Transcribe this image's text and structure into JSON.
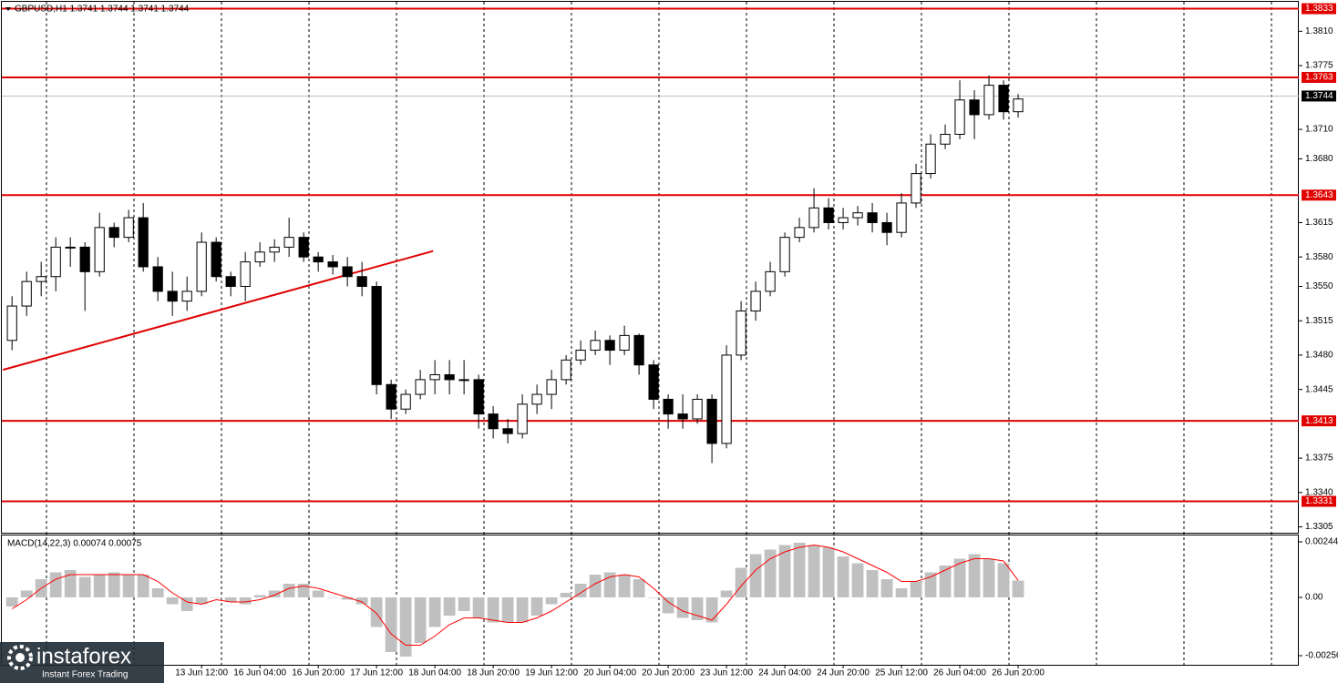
{
  "chart_data": [
    {
      "type": "candlestick",
      "title": "GBPUSD,H1  1.3741 1.3744 1.3741 1.3744",
      "open": [
        1.3495,
        1.353,
        1.3555,
        1.356,
        1.359,
        1.359,
        1.3565,
        1.361,
        1.36,
        1.362,
        1.357,
        1.3545,
        1.3535,
        1.3545,
        1.3595,
        1.356,
        1.355,
        1.3575,
        1.3585,
        1.359,
        1.36,
        1.358,
        1.3575,
        1.357,
        1.356,
        1.355,
        1.345,
        1.3425,
        1.344,
        1.3455,
        1.346,
        1.3455,
        1.3455,
        1.342,
        1.3405,
        1.34,
        1.343,
        1.344,
        1.3455,
        1.3475,
        1.3485,
        1.3495,
        1.3485,
        1.35,
        1.347,
        1.3435,
        1.342,
        1.3415,
        1.3435,
        1.339,
        1.348,
        1.3525,
        1.3545,
        1.3565,
        1.36,
        1.361,
        1.363,
        1.3615,
        1.362,
        1.3625,
        1.3615,
        1.3605,
        1.3635,
        1.3665,
        1.3695,
        1.3705,
        1.374,
        1.3725,
        1.3755,
        1.3728
      ],
      "high": [
        1.354,
        1.3565,
        1.3575,
        1.36,
        1.36,
        1.3595,
        1.3625,
        1.3615,
        1.3628,
        1.3635,
        1.358,
        1.3565,
        1.356,
        1.3605,
        1.36,
        1.3565,
        1.3585,
        1.3595,
        1.3598,
        1.362,
        1.3605,
        1.3585,
        1.3582,
        1.358,
        1.3575,
        1.3555,
        1.3455,
        1.3445,
        1.3465,
        1.3475,
        1.3475,
        1.3475,
        1.346,
        1.3428,
        1.3415,
        1.344,
        1.345,
        1.3465,
        1.348,
        1.3495,
        1.3505,
        1.35,
        1.351,
        1.3502,
        1.3475,
        1.344,
        1.344,
        1.344,
        1.344,
        1.349,
        1.3535,
        1.3555,
        1.3575,
        1.3605,
        1.362,
        1.365,
        1.364,
        1.363,
        1.3632,
        1.3635,
        1.3625,
        1.3645,
        1.3675,
        1.3705,
        1.3715,
        1.376,
        1.375,
        1.3765,
        1.376,
        1.3746
      ],
      "low": [
        1.3485,
        1.352,
        1.354,
        1.3545,
        1.357,
        1.3525,
        1.356,
        1.359,
        1.3595,
        1.3565,
        1.3535,
        1.352,
        1.3525,
        1.354,
        1.3555,
        1.354,
        1.3535,
        1.357,
        1.3575,
        1.358,
        1.3575,
        1.3565,
        1.3562,
        1.355,
        1.354,
        1.344,
        1.3415,
        1.342,
        1.3435,
        1.344,
        1.344,
        1.344,
        1.3405,
        1.3395,
        1.339,
        1.3395,
        1.342,
        1.3425,
        1.345,
        1.347,
        1.348,
        1.347,
        1.348,
        1.346,
        1.3425,
        1.3405,
        1.3405,
        1.341,
        1.337,
        1.3385,
        1.3475,
        1.3515,
        1.354,
        1.356,
        1.3595,
        1.3605,
        1.3608,
        1.3608,
        1.3612,
        1.3605,
        1.3592,
        1.36,
        1.363,
        1.366,
        1.369,
        1.37,
        1.37,
        1.372,
        1.372,
        1.3722
      ],
      "close": [
        1.353,
        1.3555,
        1.356,
        1.359,
        1.359,
        1.3565,
        1.361,
        1.36,
        1.362,
        1.357,
        1.3545,
        1.3535,
        1.3545,
        1.3595,
        1.356,
        1.355,
        1.3575,
        1.3585,
        1.359,
        1.36,
        1.358,
        1.3575,
        1.357,
        1.356,
        1.355,
        1.345,
        1.3425,
        1.344,
        1.3455,
        1.346,
        1.3455,
        1.3455,
        1.342,
        1.3405,
        1.34,
        1.343,
        1.344,
        1.3455,
        1.3475,
        1.3485,
        1.3495,
        1.3485,
        1.35,
        1.347,
        1.3435,
        1.342,
        1.3415,
        1.3435,
        1.339,
        1.348,
        1.3525,
        1.3545,
        1.3565,
        1.36,
        1.361,
        1.363,
        1.3615,
        1.362,
        1.3625,
        1.3615,
        1.3605,
        1.3635,
        1.3665,
        1.3695,
        1.3705,
        1.374,
        1.3725,
        1.3755,
        1.3728,
        1.3741
      ],
      "up_color": "#ffffff",
      "down_color": "#000000",
      "wick_color": "#000000",
      "xlim": [
        -0.7,
        88.25
      ],
      "xticks": [
        {
          "value": 13,
          "label": "13 Jun 12:00"
        },
        {
          "value": 17,
          "label": "16 Jun 04:00"
        },
        {
          "value": 21,
          "label": "16 Jun 20:00"
        },
        {
          "value": 25,
          "label": "17 Jun 12:00"
        },
        {
          "value": 29,
          "label": "18 Jun 04:00"
        },
        {
          "value": 33,
          "label": "18 Jun 20:00"
        },
        {
          "value": 37,
          "label": "19 Jun 12:00"
        },
        {
          "value": 41,
          "label": "20 Jun 04:00"
        },
        {
          "value": 45,
          "label": "20 Jun 20:00"
        },
        {
          "value": 49,
          "label": "23 Jun 12:00"
        },
        {
          "value": 53,
          "label": "24 Jun 04:00"
        },
        {
          "value": 57,
          "label": "24 Jun 20:00"
        },
        {
          "value": 61,
          "label": "25 Jun 12:00"
        },
        {
          "value": 65,
          "label": "26 Jun 04:00"
        },
        {
          "value": 69,
          "label": "26 Jun 20:00"
        }
      ],
      "ylim": [
        1.3299,
        1.384
      ],
      "yticks": [
        {
          "value": 1.381,
          "label": "1.3810"
        },
        {
          "value": 1.3775,
          "label": "1.3775"
        },
        {
          "value": 1.371,
          "label": "1.3710"
        },
        {
          "value": 1.368,
          "label": "1.3680"
        },
        {
          "value": 1.3615,
          "label": "1.3615"
        },
        {
          "value": 1.358,
          "label": "1.3580"
        },
        {
          "value": 1.355,
          "label": "1.3550"
        },
        {
          "value": 1.3515,
          "label": "1.3515"
        },
        {
          "value": 1.348,
          "label": "1.3480"
        },
        {
          "value": 1.3445,
          "label": "1.3445"
        },
        {
          "value": 1.3375,
          "label": "1.3375"
        },
        {
          "value": 1.334,
          "label": "1.3340"
        },
        {
          "value": 1.3305,
          "label": "1.3305"
        }
      ],
      "levels": [
        {
          "value": 1.3833,
          "label": "1.3833"
        },
        {
          "value": 1.3763,
          "label": "1.3763"
        },
        {
          "value": 1.3643,
          "label": "1.3643"
        },
        {
          "value": 1.3413,
          "label": "1.3413"
        },
        {
          "value": 1.3331,
          "label": "1.3331"
        }
      ],
      "level_color": "#e00000",
      "current": {
        "value": 1.3744,
        "label": "1.3744"
      },
      "trendline": {
        "x": [
          -0.625,
          28.875
        ],
        "y": [
          1.3465,
          1.3586
        ]
      }
    },
    {
      "type": "macd",
      "label": "MACD(14,22,3) 0.00074 0.00075",
      "histogram": [
        -0.0004,
        0.0003,
        0.0008,
        0.0011,
        0.0012,
        0.0009,
        0.001,
        0.0011,
        0.001,
        0.001,
        0.0004,
        -0.0003,
        -0.0006,
        -0.0003,
        0.0,
        -0.0002,
        -0.0003,
        0.0001,
        0.0003,
        0.0006,
        0.0006,
        0.0003,
        0.0,
        -0.0001,
        -0.0003,
        -0.0013,
        -0.0024,
        -0.0026,
        -0.002,
        -0.0013,
        -0.0008,
        -0.0006,
        -0.0009,
        -0.0011,
        -0.0011,
        -0.0011,
        -0.0008,
        -0.0003,
        0.0002,
        0.0006,
        0.001,
        0.0011,
        0.001,
        0.0008,
        0.0,
        -0.0007,
        -0.0009,
        -0.001,
        -0.0011,
        0.0003,
        0.0013,
        0.0019,
        0.0021,
        0.0023,
        0.0024,
        0.0023,
        0.0022,
        0.0018,
        0.0015,
        0.0012,
        0.0008,
        0.0004,
        0.0007,
        0.0011,
        0.0014,
        0.0017,
        0.0019,
        0.0017,
        0.0015,
        0.00074
      ],
      "signal": [
        -0.0005,
        -0.0001,
        0.0004,
        0.0008,
        0.001,
        0.001,
        0.001,
        0.001,
        0.001,
        0.001,
        0.0007,
        0.0002,
        -0.0002,
        -0.0003,
        -0.0001,
        -0.0002,
        -0.0002,
        -0.0001,
        0.0001,
        0.0004,
        0.0005,
        0.0004,
        0.0002,
        0.0,
        -0.0002,
        -0.0007,
        -0.0016,
        -0.0021,
        -0.0021,
        -0.0017,
        -0.0012,
        -0.0009,
        -0.0009,
        -0.001,
        -0.0011,
        -0.0011,
        -0.0009,
        -0.0006,
        -0.0002,
        0.0002,
        0.0006,
        0.0009,
        0.001,
        0.0009,
        0.0004,
        -0.0002,
        -0.0006,
        -0.0008,
        -0.001,
        -0.0003,
        0.0005,
        0.0012,
        0.0017,
        0.002,
        0.0022,
        0.0023,
        0.0022,
        0.002,
        0.0017,
        0.0014,
        0.0011,
        0.0007,
        0.0007,
        0.0009,
        0.0012,
        0.0015,
        0.0017,
        0.0017,
        0.0016,
        0.00075
      ],
      "histogram_color": "#c0c0c0",
      "signal_color": "#ff0000",
      "ylim": [
        -0.00296,
        0.00272
      ],
      "yticks": [
        0.00244,
        {
          "value": 0,
          "label": "0.00"
        },
        -0.00256
      ]
    }
  ],
  "watermark": {
    "brand": "instaforex",
    "tagline": "Instant Forex Trading"
  }
}
